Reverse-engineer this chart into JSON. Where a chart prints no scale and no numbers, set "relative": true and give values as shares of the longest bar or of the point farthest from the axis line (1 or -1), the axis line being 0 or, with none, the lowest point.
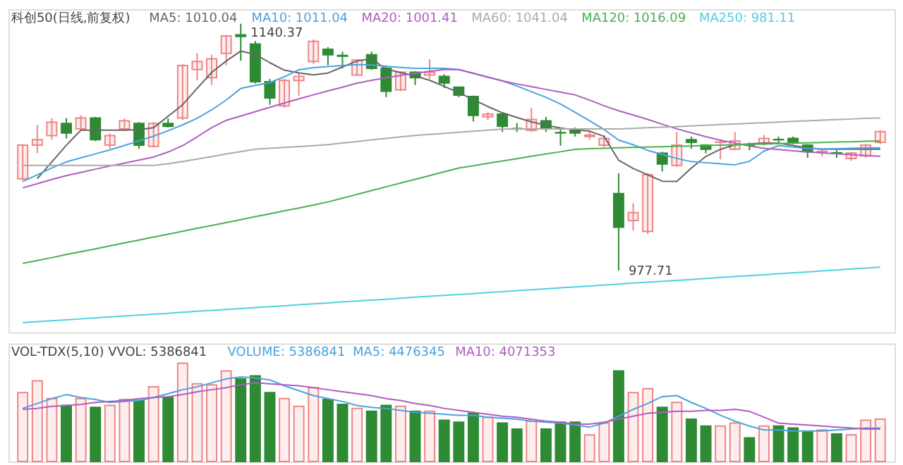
{
  "chart_data": [
    {
      "type": "candlestick",
      "title": "科创50(日线,前复权)",
      "tick_labels": false,
      "categories": [
        null,
        null,
        null,
        null,
        null,
        null,
        null,
        null,
        null,
        null,
        null,
        null,
        null,
        null,
        null,
        null,
        null,
        null,
        null,
        null,
        null,
        null,
        null,
        null,
        null,
        null,
        null,
        null,
        null,
        null,
        null,
        null,
        null,
        null,
        null,
        null,
        null,
        null,
        null,
        null,
        null,
        null,
        null,
        null,
        null,
        null,
        null,
        null,
        null,
        null,
        null,
        null,
        null,
        null,
        null,
        null,
        null,
        null,
        null,
        null
      ],
      "ylim": [
        937,
        1150
      ],
      "ohlc": [
        [
          1038.2,
          1061.0,
          1037.0,
          1060.4
        ],
        [
          1060.4,
          1073.7,
          1055.0,
          1064.0
        ],
        [
          1066.6,
          1078.2,
          1064.0,
          1075.5
        ],
        [
          1074.6,
          1078.2,
          1064.8,
          1068.4
        ],
        [
          1071.0,
          1080.0,
          1071.0,
          1078.2
        ],
        [
          1078.2,
          1079.0,
          1063.0,
          1064.0
        ],
        [
          1060.4,
          1068.0,
          1058.0,
          1066.6
        ],
        [
          1071.0,
          1078.0,
          1070.0,
          1076.4
        ],
        [
          1074.6,
          1075.5,
          1058.0,
          1060.4
        ],
        [
          1059.5,
          1075.5,
          1059.0,
          1074.6
        ],
        [
          1074.6,
          1078.0,
          1072.0,
          1072.8
        ],
        [
          1078.2,
          1113.7,
          1077.0,
          1112.8
        ],
        [
          1110.2,
          1121.0,
          1103.0,
          1115.5
        ],
        [
          1104.8,
          1120.0,
          1100.0,
          1117.3
        ],
        [
          1120.8,
          1133.0,
          1113.0,
          1132.4
        ],
        [
          1133.0,
          1140.37,
          1116.0,
          1132.0
        ],
        [
          1127.0,
          1129.0,
          1101.0,
          1102.2
        ],
        [
          1102.2,
          1104.0,
          1087.0,
          1091.5
        ],
        [
          1086.2,
          1104.0,
          1085.0,
          1103.0
        ],
        [
          1103.0,
          1108.0,
          1093.0,
          1105.7
        ],
        [
          1115.5,
          1130.0,
          1114.0,
          1128.8
        ],
        [
          1123.5,
          1125.0,
          1113.0,
          1119.9
        ],
        [
          1119.5,
          1122.0,
          1111.0,
          1119.0
        ],
        [
          1106.6,
          1117.0,
          1106.0,
          1116.4
        ],
        [
          1119.9,
          1122.0,
          1110.0,
          1111.0
        ],
        [
          1111.0,
          1112.0,
          1092.0,
          1095.9
        ],
        [
          1096.8,
          1109.0,
          1096.0,
          1108.4
        ],
        [
          1108.4,
          1109.0,
          1100.0,
          1104.8
        ],
        [
          1106.6,
          1117.0,
          1104.0,
          1108.4
        ],
        [
          1105.7,
          1107.0,
          1098.0,
          1101.3
        ],
        [
          1098.6,
          1099.0,
          1092.0,
          1093.3
        ],
        [
          1092.4,
          1093.0,
          1076.0,
          1080.0
        ],
        [
          1079.1,
          1082.0,
          1077.0,
          1080.8
        ],
        [
          1080.8,
          1082.0,
          1069.0,
          1072.8
        ],
        [
          1071.3,
          1075.0,
          1069.0,
          1071.0
        ],
        [
          1070.1,
          1085.0,
          1069.0,
          1077.3
        ],
        [
          1076.4,
          1079.0,
          1069.0,
          1071.0
        ],
        [
          1068.6,
          1072.0,
          1060.0,
          1068.4
        ],
        [
          1070.1,
          1072.0,
          1066.0,
          1068.4
        ],
        [
          1066.0,
          1070.0,
          1064.0,
          1067.0
        ],
        [
          1060.4,
          1067.0,
          1059.0,
          1064.8
        ],
        [
          1028.4,
          1041.8,
          977.71,
          1006.2
        ],
        [
          1010.6,
          1022.0,
          1004.0,
          1015.9
        ],
        [
          1003.5,
          1042.0,
          1001.7,
          1040.8
        ],
        [
          1055.0,
          1056.0,
          1043.0,
          1047.9
        ],
        [
          1047.0,
          1069.0,
          1046.0,
          1060.4
        ],
        [
          1064.0,
          1066.0,
          1058.0,
          1062.2
        ],
        [
          1060.4,
          1061.0,
          1055.0,
          1057.7
        ],
        [
          1062.2,
          1064.0,
          1051.0,
          1062.4
        ],
        [
          1057.7,
          1069.0,
          1057.0,
          1063.1
        ],
        [
          1060.6,
          1062.0,
          1057.0,
          1060.4
        ],
        [
          1061.3,
          1067.0,
          1060.0,
          1064.8
        ],
        [
          1064.1,
          1066.0,
          1062.0,
          1063.9
        ],
        [
          1064.8,
          1066.0,
          1061.0,
          1062.2
        ],
        [
          1060.4,
          1061.0,
          1052.0,
          1056.0
        ],
        [
          1056.0,
          1058.0,
          1053.0,
          1056.2
        ],
        [
          1055.3,
          1057.0,
          1052.0,
          1055.1
        ],
        [
          1051.5,
          1056.0,
          1050.0,
          1055.1
        ],
        [
          1053.3,
          1061.0,
          1052.0,
          1060.4
        ],
        [
          1062.2,
          1070.0,
          1061.0,
          1069.3
        ]
      ],
      "colors": [
        "#ef8585",
        "#ef8585",
        "#ef8585",
        "#2e8b34",
        "#ef8585",
        "#2e8b34",
        "#ef8585",
        "#ef8585",
        "#2e8b34",
        "#ef8585",
        "#2e8b34",
        "#ef8585",
        "#ef8585",
        "#ef8585",
        "#ef8585",
        "#2e8b34",
        "#2e8b34",
        "#2e8b34",
        "#ef8585",
        "#ef8585",
        "#ef8585",
        "#2e8b34",
        "#2e8b34",
        "#ef8585",
        "#2e8b34",
        "#2e8b34",
        "#ef8585",
        "#2e8b34",
        "#ef8585",
        "#2e8b34",
        "#2e8b34",
        "#2e8b34",
        "#ef8585",
        "#2e8b34",
        "#2e8b34",
        "#ef8585",
        "#2e8b34",
        "#2e8b34",
        "#2e8b34",
        "#ef8585",
        "#ef8585",
        "#2e8b34",
        "#ef8585",
        "#ef8585",
        "#2e8b34",
        "#ef8585",
        "#2e8b34",
        "#2e8b34",
        "#ef8585",
        "#ef8585",
        "#2e8b34",
        "#ef8585",
        "#2e8b34",
        "#2e8b34",
        "#2e8b34",
        "#ef8585",
        "#2e8b34",
        "#ef8585",
        "#ef8585",
        "#ef8585"
      ],
      "series": [
        {
          "name": "MA5: 1010.04",
          "type": "line",
          "color": "#666666",
          "values": [
            null,
            1038.3,
            1049.3,
            1060.3,
            1070.2,
            1070.2,
            1070.2,
            1070.2,
            1070.6,
            1071.8,
            1079.4,
            1087.0,
            1097.8,
            1108.3,
            1115.8,
            1122.4,
            1120.2,
            1114.7,
            1109.8,
            1108.0,
            1106.7,
            1107.9,
            1111.9,
            1115.8,
            1117.4,
            1110.5,
            1108.2,
            1106.0,
            1103.1,
            1099.1,
            1095.0,
            1090.4,
            1085.8,
            1081.7,
            1078.6,
            1075.7,
            1073.5,
            1071.6,
            1070.4,
            1069.6,
            1066.1,
            1050.4,
            1045.0,
            1040.8,
            1036.6,
            1036.4,
            1045.3,
            1052.9,
            1057.6,
            1060.6,
            1061.2,
            1061.8,
            1061.6,
            1060.1,
            1058.5,
            1057.7,
            1057.7,
            1057.7,
            1057.7,
            1057.7
          ]
        },
        {
          "name": "MA10: 1011.04",
          "type": "line",
          "color": "#4aa3df",
          "values": [
            1036.4,
            1040.8,
            1045.3,
            1049.3,
            1052.0,
            1054.6,
            1057.2,
            1060.1,
            1063.2,
            1066.3,
            1069.8,
            1073.7,
            1078.1,
            1083.6,
            1090.1,
            1097.7,
            1099.7,
            1101.6,
            1105.4,
            1110.1,
            1111.5,
            1112.1,
            1112.8,
            1113.4,
            1113.2,
            1112.4,
            1111.6,
            1111.0,
            1111.0,
            1111.0,
            1110.2,
            1107.7,
            1105.2,
            1102.7,
            1099.3,
            1095.6,
            1091.9,
            1087.5,
            1082.0,
            1076.4,
            1070.6,
            1063.7,
            1060.6,
            1056.9,
            1054.2,
            1051.6,
            1049.5,
            1048.8,
            1048.1,
            1047.4,
            1049.7,
            1056.4,
            1060.0,
            1059.1,
            1058.2,
            1057.8,
            1058.0,
            1058.3,
            1058.5,
            1058.6
          ]
        },
        {
          "name": "MA20: 1001.41",
          "type": "line",
          "color": "#b05cc0",
          "values": [
            1032.2,
            1034.9,
            1037.7,
            1040.3,
            1042.4,
            1044.5,
            1046.6,
            1048.5,
            1050.5,
            1052.5,
            1055.8,
            1060.0,
            1065.8,
            1071.9,
            1076.7,
            1079.5,
            1082.4,
            1085.3,
            1088.1,
            1090.9,
            1093.5,
            1096.1,
            1098.6,
            1101.2,
            1103.1,
            1104.7,
            1106.3,
            1107.7,
            1109.0,
            1110.2,
            1110.2,
            1107.7,
            1105.2,
            1102.7,
            1100.7,
            1098.9,
            1097.1,
            1095.3,
            1093.5,
            1090.0,
            1086.3,
            1083.0,
            1080.2,
            1077.3,
            1074.1,
            1071.1,
            1068.5,
            1065.9,
            1063.6,
            1061.7,
            1059.8,
            1058.3,
            1057.4,
            1056.6,
            1055.8,
            1055.2,
            1054.7,
            1054.1,
            1053.5,
            1053.0
          ]
        },
        {
          "name": "MA60: 1041.04",
          "type": "line",
          "color": "#aaaaaa",
          "values": [
            1047.0,
            1047.0,
            1047.0,
            1047.0,
            1047.0,
            1047.0,
            1047.0,
            1047.0,
            1047.0,
            1047.0,
            1048.0,
            1049.6,
            1051.2,
            1052.8,
            1054.5,
            1056.1,
            1057.7,
            1058.3,
            1058.9,
            1059.4,
            1060.0,
            1060.7,
            1061.7,
            1062.7,
            1063.8,
            1064.8,
            1065.8,
            1066.7,
            1067.4,
            1068.1,
            1068.8,
            1069.5,
            1070.2,
            1070.9,
            1071.0,
            1071.0,
            1071.0,
            1071.0,
            1071.0,
            1071.0,
            1071.0,
            1071.0,
            1071.4,
            1071.8,
            1072.2,
            1072.6,
            1073.0,
            1073.5,
            1073.9,
            1074.3,
            1074.7,
            1075.1,
            1075.6,
            1076.0,
            1076.4,
            1076.8,
            1077.2,
            1077.6,
            1078.0,
            1078.2
          ]
        },
        {
          "name": "MA120: 1016.09",
          "type": "line",
          "color": "#4caf50",
          "values": [
            982.4,
            984.3,
            986.2,
            988.2,
            990.1,
            992.0,
            993.9,
            995.9,
            997.8,
            999.7,
            1001.6,
            1003.6,
            1005.5,
            1007.4,
            1009.3,
            1011.2,
            1013.2,
            1015.1,
            1017.0,
            1018.9,
            1020.9,
            1022.9,
            1025.4,
            1027.9,
            1030.4,
            1032.9,
            1035.4,
            1037.8,
            1040.3,
            1042.8,
            1045.3,
            1046.8,
            1048.4,
            1049.9,
            1051.4,
            1053.0,
            1054.5,
            1056.0,
            1057.6,
            1058.0,
            1058.3,
            1058.6,
            1058.8,
            1059.1,
            1059.3,
            1059.6,
            1059.8,
            1060.1,
            1060.4,
            1060.6,
            1060.9,
            1061.1,
            1061.4,
            1061.6,
            1061.9,
            1062.1,
            1062.4,
            1062.6,
            1062.9,
            1063.1
          ]
        },
        {
          "name": "MA250: 981.11",
          "type": "line",
          "color": "#4fd0e0",
          "values": [
            943.3,
            944.0,
            944.6,
            945.2,
            945.8,
            946.4,
            947.1,
            947.7,
            948.3,
            948.9,
            949.5,
            950.2,
            950.8,
            951.4,
            952.0,
            952.6,
            953.3,
            953.9,
            954.5,
            955.1,
            955.7,
            956.3,
            957.0,
            957.6,
            958.2,
            958.8,
            959.4,
            960.1,
            960.7,
            961.3,
            961.9,
            962.5,
            963.2,
            963.8,
            964.4,
            965.0,
            965.6,
            966.3,
            966.9,
            967.5,
            968.1,
            968.7,
            969.4,
            970.0,
            970.6,
            971.2,
            971.8,
            972.5,
            973.1,
            973.7,
            974.3,
            974.9,
            975.6,
            976.2,
            976.8,
            977.4,
            978.0,
            978.7,
            979.3,
            979.9
          ]
        }
      ],
      "annotations": [
        "1140.37",
        "977.71"
      ]
    },
    {
      "type": "bar",
      "relative": true,
      "title": "VOL-TDX(5,10) VVOL: 5386841",
      "tick_labels": false,
      "annotations": [
        "VOLUME: 5386841"
      ],
      "categories": [
        null,
        null,
        null,
        null,
        null,
        null,
        null,
        null,
        null,
        null,
        null,
        null,
        null,
        null,
        null,
        null,
        null,
        null,
        null,
        null,
        null,
        null,
        null,
        null,
        null,
        null,
        null,
        null,
        null,
        null,
        null,
        null,
        null,
        null,
        null,
        null,
        null,
        null,
        null,
        null,
        null,
        null,
        null,
        null,
        null,
        null,
        null,
        null,
        null,
        null,
        null,
        null,
        null,
        null,
        null,
        null,
        null,
        null,
        null,
        null
      ],
      "series": [
        {
          "type": "bar",
          "colors": [
            "#ef8585",
            "#ef8585",
            "#ef8585",
            "#2e8b34",
            "#ef8585",
            "#2e8b34",
            "#ef8585",
            "#ef8585",
            "#2e8b34",
            "#ef8585",
            "#2e8b34",
            "#ef8585",
            "#ef8585",
            "#ef8585",
            "#ef8585",
            "#2e8b34",
            "#2e8b34",
            "#2e8b34",
            "#ef8585",
            "#ef8585",
            "#ef8585",
            "#2e8b34",
            "#2e8b34",
            "#ef8585",
            "#2e8b34",
            "#2e8b34",
            "#ef8585",
            "#2e8b34",
            "#ef8585",
            "#2e8b34",
            "#2e8b34",
            "#2e8b34",
            "#ef8585",
            "#2e8b34",
            "#2e8b34",
            "#ef8585",
            "#2e8b34",
            "#2e8b34",
            "#2e8b34",
            "#ef8585",
            "#ef8585",
            "#2e8b34",
            "#ef8585",
            "#ef8585",
            "#2e8b34",
            "#ef8585",
            "#2e8b34",
            "#2e8b34",
            "#ef8585",
            "#ef8585",
            "#2e8b34",
            "#ef8585",
            "#2e8b34",
            "#2e8b34",
            "#2e8b34",
            "#ef8585",
            "#2e8b34",
            "#ef8585",
            "#ef8585",
            "#ef8585"
          ],
          "values": [
            0.7,
            0.82,
            0.64,
            0.57,
            0.64,
            0.55,
            0.57,
            0.63,
            0.62,
            0.76,
            0.65,
            1.0,
            0.79,
            0.78,
            0.92,
            0.84,
            0.87,
            0.7,
            0.64,
            0.56,
            0.75,
            0.63,
            0.58,
            0.54,
            0.51,
            0.57,
            0.56,
            0.51,
            0.51,
            0.42,
            0.4,
            0.49,
            0.45,
            0.39,
            0.33,
            0.41,
            0.33,
            0.4,
            0.4,
            0.27,
            0.39,
            0.92,
            0.7,
            0.74,
            0.55,
            0.6,
            0.43,
            0.36,
            0.36,
            0.39,
            0.24,
            0.36,
            0.36,
            0.34,
            0.3,
            0.32,
            0.28,
            0.27,
            0.42,
            0.43
          ]
        },
        {
          "name": "MA5: 4476345",
          "type": "line",
          "color": "#4aa3df",
          "values": [
            0.54,
            0.59,
            0.64,
            0.68,
            0.65,
            0.63,
            0.6,
            0.61,
            0.62,
            0.65,
            0.69,
            0.73,
            0.76,
            0.8,
            0.84,
            0.86,
            0.85,
            0.83,
            0.77,
            0.72,
            0.67,
            0.64,
            0.61,
            0.57,
            0.55,
            0.54,
            0.52,
            0.5,
            0.49,
            0.48,
            0.47,
            0.47,
            0.45,
            0.44,
            0.43,
            0.41,
            0.4,
            0.39,
            0.37,
            0.35,
            0.39,
            0.46,
            0.53,
            0.59,
            0.66,
            0.67,
            0.6,
            0.54,
            0.47,
            0.41,
            0.36,
            0.32,
            0.32,
            0.31,
            0.31,
            0.31,
            0.32,
            0.33,
            0.34,
            0.34
          ]
        },
        {
          "name": "MA10: 4071353",
          "type": "line",
          "color": "#b05cc0",
          "values": [
            0.53,
            0.54,
            0.56,
            0.57,
            0.58,
            0.6,
            0.61,
            0.62,
            0.64,
            0.65,
            0.66,
            0.68,
            0.71,
            0.73,
            0.75,
            0.78,
            0.8,
            0.79,
            0.78,
            0.77,
            0.75,
            0.73,
            0.71,
            0.69,
            0.67,
            0.64,
            0.62,
            0.59,
            0.57,
            0.54,
            0.52,
            0.5,
            0.48,
            0.46,
            0.45,
            0.43,
            0.41,
            0.4,
            0.38,
            0.38,
            0.4,
            0.43,
            0.46,
            0.49,
            0.5,
            0.51,
            0.51,
            0.52,
            0.52,
            0.53,
            0.51,
            0.45,
            0.39,
            0.38,
            0.37,
            0.36,
            0.35,
            0.34,
            0.33,
            0.33
          ]
        }
      ]
    }
  ]
}
